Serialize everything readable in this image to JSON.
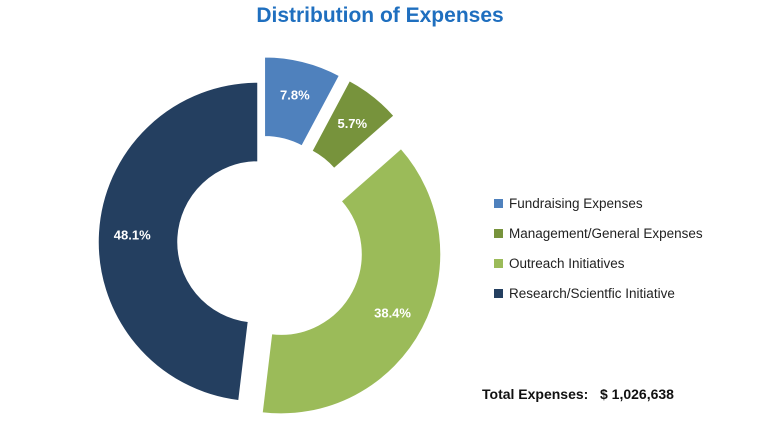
{
  "chart_data": {
    "type": "pie",
    "variant": "donut",
    "title": "Distribution of Expenses",
    "slices": [
      {
        "label": "Fundraising Expenses",
        "value": 7.8,
        "value_label": "7.8%",
        "color": "#4f81bd",
        "exploded": true
      },
      {
        "label": "Management/General Expenses",
        "value": 5.7,
        "value_label": "5.7%",
        "color": "#77933c",
        "exploded": true
      },
      {
        "label": "Outreach Initiatives",
        "value": 38.4,
        "value_label": "38.4%",
        "color": "#9bbb59",
        "exploded": true
      },
      {
        "label": "Research/Scientfic Initiative",
        "value": 48.1,
        "value_label": "48.1%",
        "color": "#243f60",
        "exploded": false
      }
    ],
    "legend_position": "right",
    "data_label_color": "#ffffff"
  },
  "total": {
    "label": "Total Expenses:",
    "value": "$ 1,026,638"
  },
  "colors": {
    "title": "#1f6fbf"
  }
}
